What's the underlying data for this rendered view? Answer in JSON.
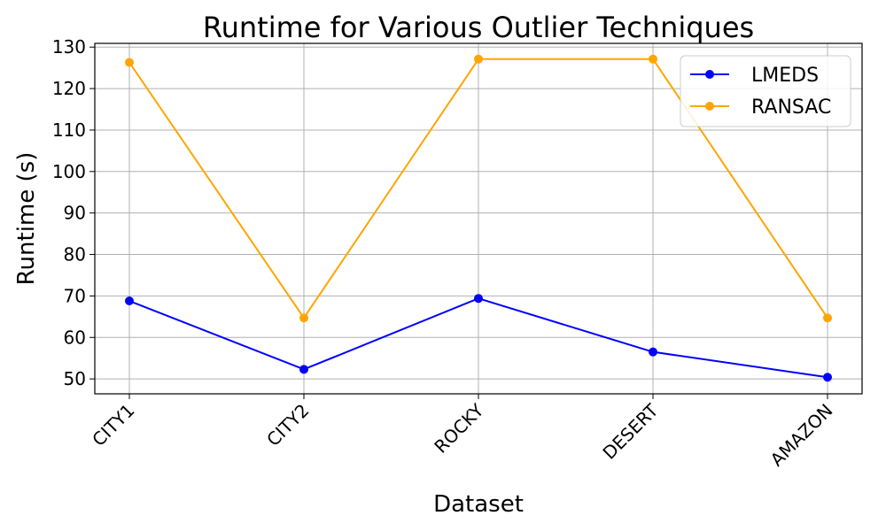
{
  "chart_data": {
    "type": "line",
    "title": "Runtime for Various Outlier Techniques",
    "xlabel": "Dataset",
    "ylabel": "Runtime (s)",
    "categories": [
      "CITY1",
      "CITY2",
      "ROCKY",
      "DESERT",
      "AMAZON"
    ],
    "ylim": [
      46.4,
      130.9
    ],
    "yticks": [
      50,
      60,
      70,
      80,
      90,
      100,
      110,
      120,
      130
    ],
    "grid": true,
    "legend_position": "top-right",
    "series": [
      {
        "name": "LMEDS",
        "color": "#0000ff",
        "values": [
          68.8,
          52.3,
          69.4,
          56.5,
          50.4
        ]
      },
      {
        "name": "RANSAC",
        "color": "#ffa500",
        "values": [
          126.3,
          64.7,
          127.1,
          127.1,
          64.7
        ]
      }
    ]
  }
}
